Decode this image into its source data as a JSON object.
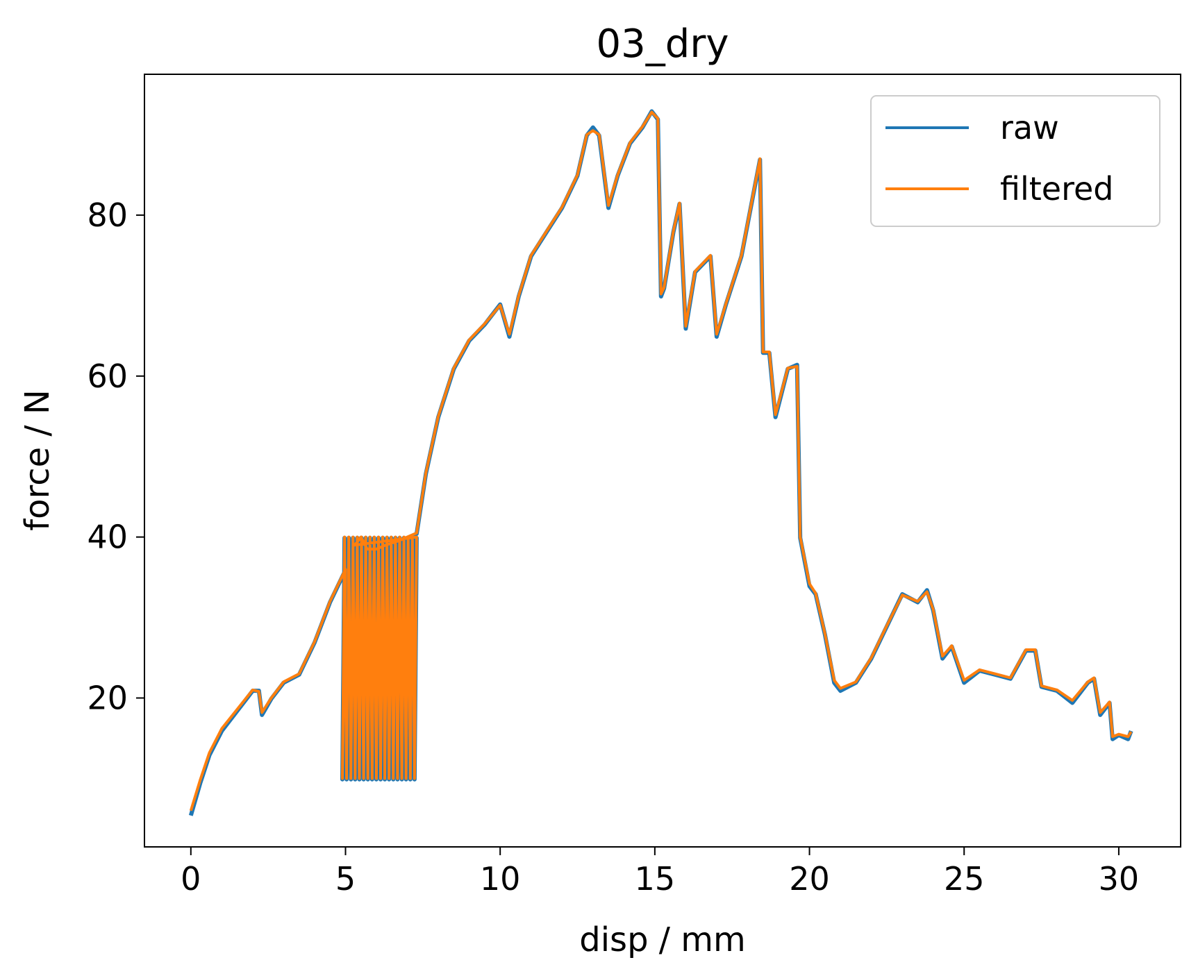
{
  "chart_data": {
    "type": "line",
    "title": "03_dry",
    "xlabel": "disp / mm",
    "ylabel": "force / N",
    "xlim": [
      -1.5,
      32.0
    ],
    "ylim": [
      1.5,
      97.5
    ],
    "xticks": [
      0,
      5,
      10,
      15,
      20,
      25,
      30
    ],
    "yticks": [
      20,
      40,
      60,
      80
    ],
    "grid": false,
    "legend_position": "top-right",
    "series": [
      {
        "name": "raw",
        "color": "#1f77b4",
        "x": [
          0,
          0.3,
          0.6,
          1.0,
          1.5,
          2.0,
          2.2,
          2.3,
          2.6,
          3.0,
          3.5,
          4.0,
          4.5,
          5.0,
          5.3,
          5.5,
          5.7,
          6.0,
          6.3,
          6.7,
          7.0,
          7.3,
          7.6,
          8.0,
          8.5,
          9.0,
          9.5,
          10.0,
          10.3,
          10.6,
          11.0,
          11.5,
          12.0,
          12.5,
          12.8,
          13.0,
          13.2,
          13.5,
          13.8,
          14.2,
          14.6,
          14.9,
          15.1,
          15.2,
          15.3,
          15.6,
          15.8,
          16.0,
          16.3,
          16.8,
          17.0,
          17.3,
          17.8,
          18.4,
          18.5,
          18.7,
          18.9,
          19.3,
          19.6,
          19.7,
          20.0,
          20.2,
          20.5,
          20.8,
          21.0,
          21.5,
          22.0,
          22.5,
          23.0,
          23.5,
          23.8,
          24.0,
          24.3,
          24.6,
          25.0,
          25.5,
          26.0,
          26.5,
          27.0,
          27.3,
          27.5,
          28.0,
          28.5,
          29.0,
          29.2,
          29.4,
          29.7,
          29.8,
          30.0,
          30.3,
          30.4
        ],
        "y": [
          5.5,
          9.5,
          13,
          16,
          18.5,
          21,
          21,
          18,
          20,
          22,
          23,
          27,
          32,
          36,
          39,
          40,
          38.5,
          38.5,
          39,
          39.5,
          40,
          40.5,
          48,
          55,
          61,
          64.5,
          66.5,
          69,
          65,
          70,
          75,
          78,
          81,
          85,
          90,
          91,
          90,
          81,
          85,
          89,
          91,
          93,
          92,
          70,
          71,
          78,
          81.5,
          66,
          73,
          75,
          65,
          69,
          75,
          87,
          63,
          63,
          55,
          61,
          61.5,
          40,
          34,
          33,
          28,
          22,
          21,
          22,
          25,
          29,
          33,
          32,
          33.5,
          31,
          25,
          26.5,
          22,
          23.5,
          23,
          22.5,
          26,
          26,
          21.5,
          21,
          19.5,
          22,
          22.5,
          18,
          19.5,
          15,
          15.5,
          15,
          16
        ]
      },
      {
        "name": "filtered",
        "color": "#ff7f0e",
        "x": [
          0,
          0.3,
          0.6,
          1.0,
          1.5,
          2.0,
          2.2,
          2.3,
          2.6,
          3.0,
          3.5,
          4.0,
          4.5,
          5.0,
          5.3,
          5.5,
          5.7,
          6.0,
          6.3,
          6.7,
          7.0,
          7.3,
          7.6,
          8.0,
          8.5,
          9.0,
          9.5,
          10.0,
          10.3,
          10.6,
          11.0,
          11.5,
          12.0,
          12.5,
          12.8,
          13.0,
          13.2,
          13.5,
          13.8,
          14.2,
          14.6,
          14.9,
          15.1,
          15.2,
          15.3,
          15.6,
          15.8,
          16.0,
          16.3,
          16.8,
          17.0,
          17.3,
          17.8,
          18.4,
          18.5,
          18.7,
          18.9,
          19.3,
          19.6,
          19.7,
          20.0,
          20.2,
          20.5,
          20.8,
          21.0,
          21.5,
          22.0,
          22.5,
          23.0,
          23.5,
          23.8,
          24.0,
          24.3,
          24.6,
          25.0,
          25.5,
          26.0,
          26.5,
          27.0,
          27.3,
          27.5,
          28.0,
          28.5,
          29.0,
          29.2,
          29.4,
          29.7,
          29.8,
          30.0,
          30.3,
          30.4
        ],
        "y": [
          6,
          9.8,
          13.2,
          16.2,
          18.6,
          21,
          20.8,
          18.2,
          20,
          22,
          23,
          27,
          32,
          36,
          39,
          40,
          38.5,
          38.5,
          39,
          39.5,
          40,
          40.5,
          48,
          55,
          61,
          64.5,
          66.5,
          68.8,
          65.2,
          70,
          75,
          78,
          81,
          85,
          90,
          90.5,
          90,
          81.2,
          85,
          89,
          91,
          92.8,
          92,
          70.2,
          71,
          78,
          81.5,
          66.2,
          73,
          75,
          65.2,
          69,
          75,
          87,
          63,
          63,
          55.2,
          61,
          61.2,
          40,
          34.2,
          33,
          28,
          22.2,
          21.2,
          22,
          25,
          29,
          32.8,
          32,
          33.2,
          31,
          25.2,
          26.5,
          22.2,
          23.5,
          23,
          22.5,
          26,
          26,
          21.5,
          21,
          19.7,
          22,
          22.5,
          18.2,
          19.5,
          15.2,
          15.5,
          15.2,
          15.8
        ]
      }
    ],
    "oscillation_band": {
      "x_start": 4.9,
      "x_end": 7.3,
      "y_low": 10,
      "y_high": 40
    }
  }
}
